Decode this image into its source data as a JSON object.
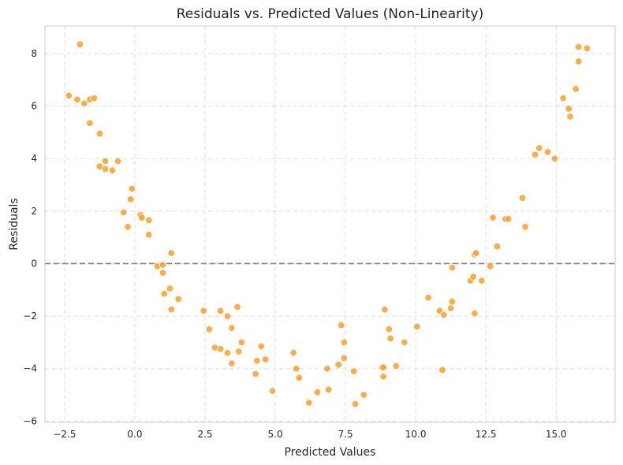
{
  "chart_data": {
    "type": "scatter",
    "title": "Residuals vs. Predicted Values (Non-Linearity)",
    "xlabel": "Predicted Values",
    "ylabel": "Residuals",
    "xlim": [
      -3.2,
      17.1
    ],
    "ylim": [
      -6.05,
      9.05
    ],
    "xticks": [
      -2.5,
      0.0,
      2.5,
      5.0,
      7.5,
      10.0,
      12.5,
      15.0
    ],
    "xtick_labels": [
      "−2.5",
      "0.0",
      "2.5",
      "5.0",
      "7.5",
      "10.0",
      "12.5",
      "15.0"
    ],
    "yticks": [
      -6,
      -4,
      -2,
      0,
      2,
      4,
      6,
      8
    ],
    "ytick_labels": [
      "−6",
      "−4",
      "−2",
      "0",
      "2",
      "4",
      "6",
      "8"
    ],
    "grid": true,
    "reference_line": {
      "y": 0,
      "style": "dashed",
      "color": "#808080"
    },
    "point_color": "#f5a032",
    "points": [
      [
        -2.35,
        6.4
      ],
      [
        -2.05,
        6.25
      ],
      [
        -1.95,
        8.35
      ],
      [
        -1.8,
        6.1
      ],
      [
        -1.6,
        6.25
      ],
      [
        -1.45,
        6.3
      ],
      [
        -1.6,
        5.35
      ],
      [
        -1.25,
        4.95
      ],
      [
        -1.25,
        3.7
      ],
      [
        -1.05,
        3.9
      ],
      [
        -1.05,
        3.6
      ],
      [
        -0.8,
        3.55
      ],
      [
        -0.6,
        3.9
      ],
      [
        -0.4,
        1.95
      ],
      [
        -0.25,
        1.4
      ],
      [
        -0.15,
        2.45
      ],
      [
        -0.1,
        2.85
      ],
      [
        0.2,
        1.85
      ],
      [
        0.25,
        1.75
      ],
      [
        0.5,
        1.65
      ],
      [
        0.5,
        1.1
      ],
      [
        0.8,
        -0.1
      ],
      [
        1.0,
        -0.05
      ],
      [
        1.0,
        -0.35
      ],
      [
        1.05,
        -1.15
      ],
      [
        1.25,
        -0.95
      ],
      [
        1.3,
        -1.75
      ],
      [
        1.3,
        0.4
      ],
      [
        1.55,
        -1.35
      ],
      [
        2.45,
        -1.8
      ],
      [
        2.65,
        -2.5
      ],
      [
        2.85,
        -3.2
      ],
      [
        3.05,
        -1.8
      ],
      [
        3.05,
        -3.25
      ],
      [
        3.3,
        -2.0
      ],
      [
        3.3,
        -3.4
      ],
      [
        3.45,
        -2.45
      ],
      [
        3.45,
        -3.8
      ],
      [
        3.65,
        -1.65
      ],
      [
        3.7,
        -3.35
      ],
      [
        3.8,
        -3.0
      ],
      [
        4.3,
        -4.2
      ],
      [
        4.35,
        -3.7
      ],
      [
        4.5,
        -3.15
      ],
      [
        4.65,
        -3.65
      ],
      [
        4.9,
        -4.85
      ],
      [
        5.65,
        -3.4
      ],
      [
        5.75,
        -4.0
      ],
      [
        5.85,
        -4.35
      ],
      [
        6.2,
        -5.3
      ],
      [
        6.5,
        -4.9
      ],
      [
        6.9,
        -4.8
      ],
      [
        6.85,
        -4.0
      ],
      [
        7.25,
        -3.85
      ],
      [
        7.35,
        -2.35
      ],
      [
        7.45,
        -3.0
      ],
      [
        7.45,
        -3.6
      ],
      [
        7.8,
        -4.1
      ],
      [
        7.85,
        -5.35
      ],
      [
        8.15,
        -5.0
      ],
      [
        8.8,
        -3.95
      ],
      [
        8.85,
        -3.95
      ],
      [
        8.85,
        -4.3
      ],
      [
        8.9,
        -1.75
      ],
      [
        9.05,
        -2.5
      ],
      [
        9.1,
        -2.85
      ],
      [
        9.3,
        -3.9
      ],
      [
        9.6,
        -3.0
      ],
      [
        10.05,
        -2.4
      ],
      [
        10.45,
        -1.3
      ],
      [
        10.85,
        -1.8
      ],
      [
        10.95,
        -4.05
      ],
      [
        11.0,
        -1.95
      ],
      [
        11.25,
        -1.7
      ],
      [
        11.3,
        -1.45
      ],
      [
        11.3,
        -0.15
      ],
      [
        11.95,
        -0.65
      ],
      [
        12.05,
        -0.5
      ],
      [
        12.1,
        -1.9
      ],
      [
        12.1,
        0.35
      ],
      [
        12.15,
        0.4
      ],
      [
        12.35,
        -0.65
      ],
      [
        12.65,
        -0.1
      ],
      [
        12.75,
        1.75
      ],
      [
        12.9,
        0.65
      ],
      [
        13.2,
        1.7
      ],
      [
        13.3,
        1.7
      ],
      [
        13.8,
        2.5
      ],
      [
        13.9,
        1.4
      ],
      [
        14.25,
        4.15
      ],
      [
        14.4,
        4.4
      ],
      [
        14.7,
        4.25
      ],
      [
        14.95,
        4.0
      ],
      [
        15.25,
        6.3
      ],
      [
        15.45,
        5.9
      ],
      [
        15.5,
        5.6
      ],
      [
        15.7,
        6.65
      ],
      [
        15.8,
        8.25
      ],
      [
        15.8,
        7.7
      ],
      [
        16.1,
        8.2
      ]
    ]
  }
}
